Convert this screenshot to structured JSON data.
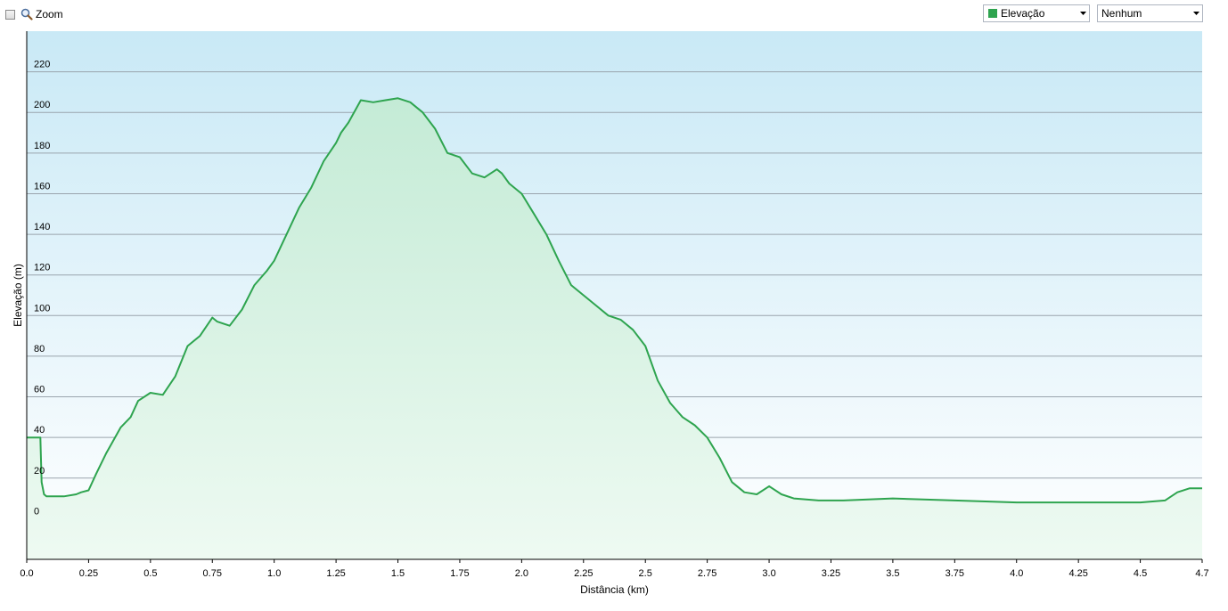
{
  "toolbar": {
    "zoom_label": "Zoom",
    "zoom_checked": false,
    "metric_select": {
      "value": "Elevação",
      "color": "#2ea44f"
    },
    "secondary_select": {
      "value": "Nenhum"
    }
  },
  "chart_data": {
    "type": "area",
    "title": "",
    "xlabel": "Distância  (km)",
    "ylabel": "Elevação (m)",
    "xlim": [
      0,
      4.75
    ],
    "ylim": [
      -20,
      240
    ],
    "x_ticks": [
      0,
      0.25,
      0.5,
      0.75,
      1.0,
      1.25,
      1.5,
      1.75,
      2.0,
      2.25,
      2.5,
      2.75,
      3.0,
      3.25,
      3.5,
      3.75,
      4.0,
      4.25,
      4.5,
      4.75
    ],
    "x_tick_labels": [
      "0.0",
      "0.25",
      "0.5",
      "0.75",
      "1.0",
      "1.25",
      "1.5",
      "1.75",
      "2.0",
      "2.25",
      "2.5",
      "2.75",
      "3.0",
      "3.25",
      "3.5",
      "3.75",
      "4.0",
      "4.25",
      "4.5",
      "4.7"
    ],
    "y_ticks": [
      0,
      20,
      40,
      60,
      80,
      100,
      120,
      140,
      160,
      180,
      200,
      220
    ],
    "grid": true,
    "line_color": "#2ea44f",
    "series": [
      {
        "x": [
          0,
          0.055,
          0.06,
          0.07,
          0.08,
          0.1,
          0.15,
          0.2,
          0.22,
          0.25,
          0.28,
          0.32,
          0.38,
          0.42,
          0.45,
          0.5,
          0.55,
          0.6,
          0.65,
          0.7,
          0.75,
          0.77,
          0.82,
          0.87,
          0.92,
          0.97,
          1.0,
          1.05,
          1.1,
          1.15,
          1.2,
          1.25,
          1.27,
          1.3,
          1.35,
          1.4,
          1.45,
          1.5,
          1.55,
          1.6,
          1.65,
          1.7,
          1.75,
          1.8,
          1.85,
          1.9,
          1.92,
          1.95,
          2.0,
          2.05,
          2.1,
          2.15,
          2.2,
          2.25,
          2.3,
          2.35,
          2.4,
          2.45,
          2.5,
          2.55,
          2.6,
          2.65,
          2.7,
          2.75,
          2.8,
          2.85,
          2.9,
          2.95,
          3.0,
          3.05,
          3.1,
          3.2,
          3.3,
          3.5,
          3.75,
          4.0,
          4.25,
          4.5,
          4.6,
          4.65,
          4.7,
          4.75
        ],
        "y": [
          40,
          40,
          18,
          12,
          11,
          11,
          11,
          12,
          13,
          14,
          22,
          32,
          45,
          50,
          58,
          62,
          61,
          70,
          85,
          90,
          99,
          97,
          95,
          103,
          115,
          122,
          127,
          140,
          153,
          163,
          176,
          185,
          190,
          195,
          206,
          205,
          206,
          207,
          205,
          200,
          192,
          180,
          178,
          170,
          168,
          172,
          170,
          165,
          160,
          150,
          140,
          127,
          115,
          110,
          105,
          100,
          98,
          93,
          85,
          68,
          57,
          50,
          46,
          40,
          30,
          18,
          13,
          12,
          16,
          12,
          10,
          9,
          9,
          10,
          9,
          8,
          8,
          8,
          9,
          13,
          15,
          15
        ]
      }
    ]
  }
}
